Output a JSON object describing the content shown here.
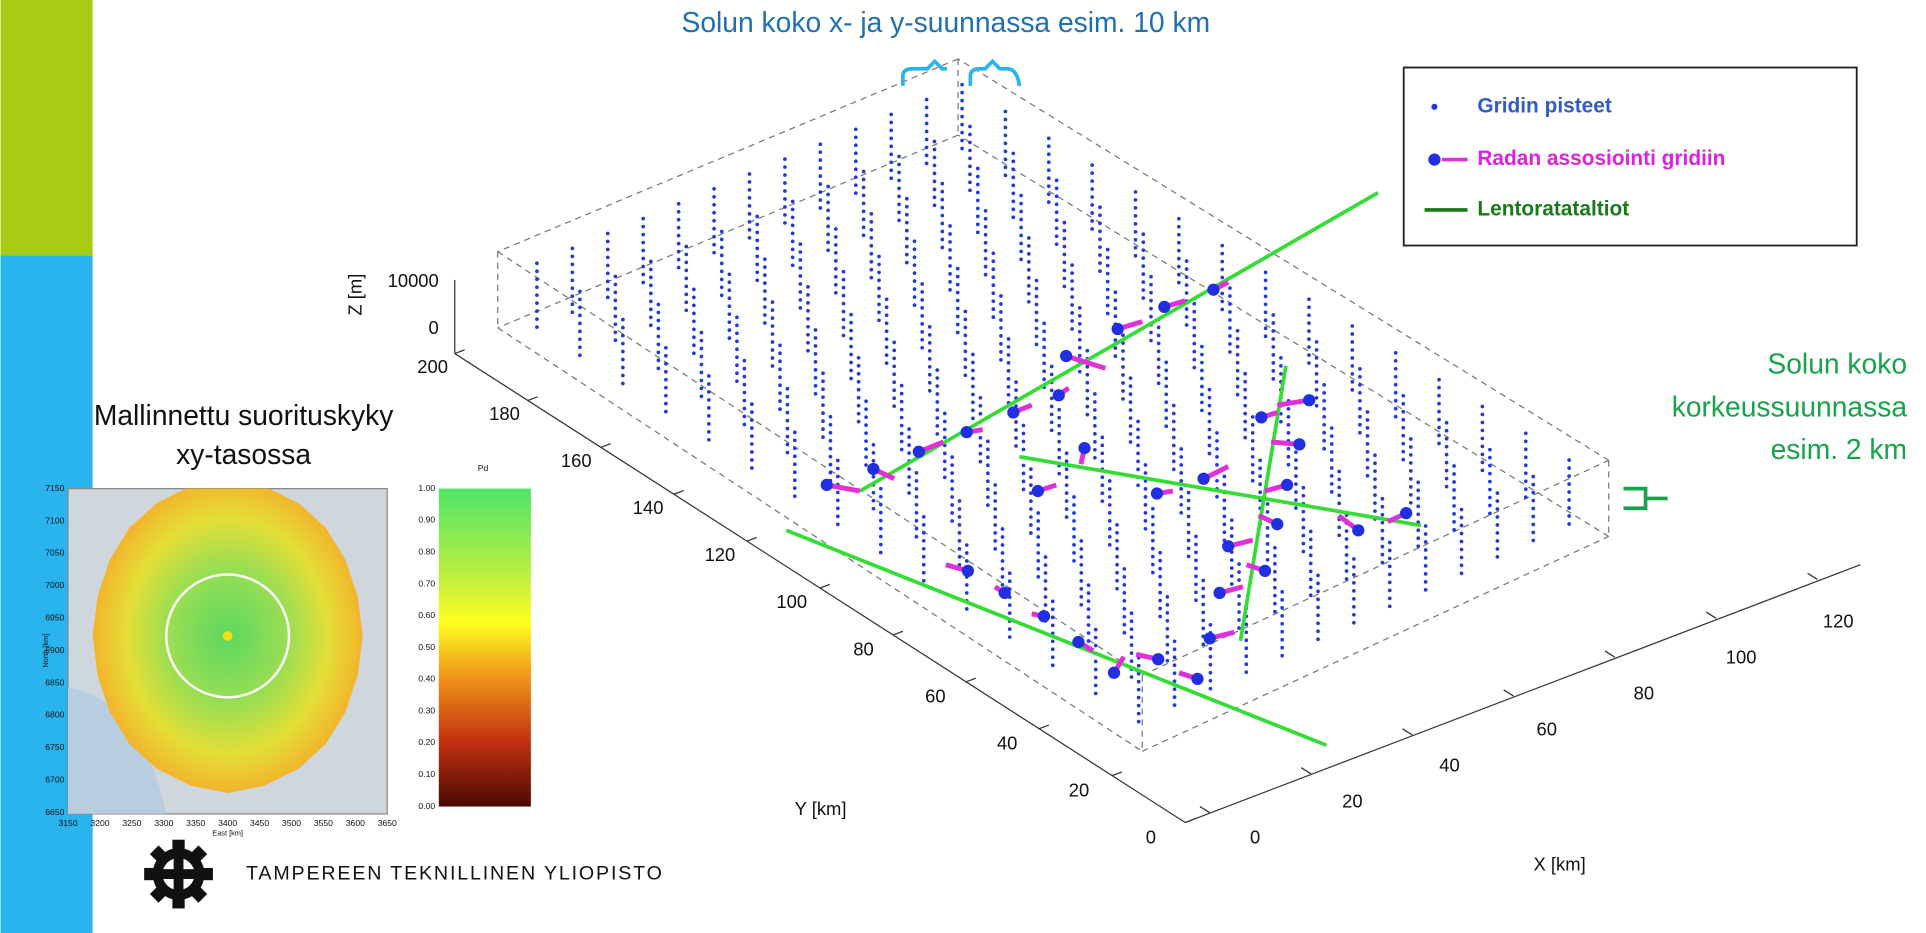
{
  "annotations": {
    "cell_xy": "Solun koko x- ja y-suunnassa esim. 10 km",
    "cell_z": [
      "Solun koko",
      "korkeussuunnassa",
      "esim. 2 km"
    ]
  },
  "legend": [
    "Gridin pisteet",
    "Radan assosiointi gridiin",
    "Lentoratataltiot"
  ],
  "plot3d": {
    "z_label": "Z [m]",
    "z_ticks": [
      10000,
      0
    ],
    "y_label": "Y [km]",
    "y_ticks": [
      200,
      180,
      160,
      140,
      120,
      100,
      80,
      60,
      40,
      20,
      0
    ],
    "x_label": "X [km]",
    "x_ticks": [
      0,
      20,
      40,
      60,
      80,
      100,
      120
    ]
  },
  "inset": {
    "title": [
      "Mallinnettu suorituskyky",
      "xy-tasossa"
    ],
    "map_y_ticks": [
      7150,
      7100,
      7050,
      7000,
      6950,
      6900,
      6850,
      6800,
      6750,
      6700,
      6650
    ],
    "map_x_ticks": [
      3150,
      3200,
      3250,
      3300,
      3350,
      3400,
      3450,
      3500,
      3550,
      3600,
      3650
    ],
    "map_y_label": "North [km]",
    "map_x_label": "East [km]",
    "colorbar_label": "Pd",
    "colorbar_ticks": [
      "1.00",
      "0.90",
      "0.80",
      "0.70",
      "0.60",
      "0.50",
      "0.40",
      "0.30",
      "0.20",
      "0.10",
      "0.00"
    ]
  },
  "logo": "TAMPEREEN TEKNILLINEN YLIOPISTO"
}
